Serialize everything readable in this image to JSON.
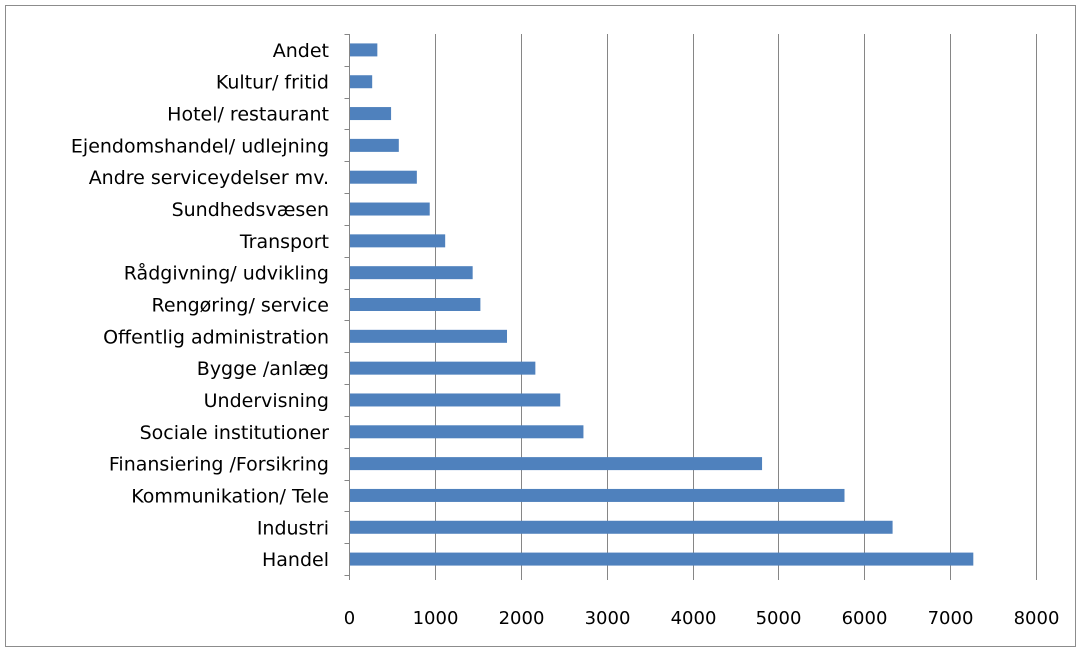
{
  "chart_data": {
    "type": "bar",
    "orientation": "horizontal",
    "categories": [
      "Handel",
      "Industri",
      "Kommunikation/ Tele",
      "Finansiering /Forsikring",
      "Sociale institutioner",
      "Undervisning",
      "Bygge /anlæg",
      "Offentlig administration",
      "Rengøring/ service",
      "Rådgivning/ udvikling",
      "Transport",
      "Sundhedsvæsen",
      "Andre serviceydelser mv.",
      "Ejendomshandel/ udlejning",
      "Hotel/ restaurant",
      "Kultur/ fritid",
      "Andet"
    ],
    "values": [
      7270,
      6330,
      5770,
      4810,
      2730,
      2460,
      2170,
      1840,
      1530,
      1440,
      1120,
      940,
      790,
      580,
      490,
      270,
      330
    ],
    "xlim": [
      0,
      8000
    ],
    "xticks": [
      "0",
      "1000",
      "2000",
      "3000",
      "4000",
      "5000",
      "6000",
      "7000",
      "8000"
    ],
    "grid": true,
    "legend": "none",
    "bar_color": "#4f81bd",
    "grid_color": "#868686"
  }
}
